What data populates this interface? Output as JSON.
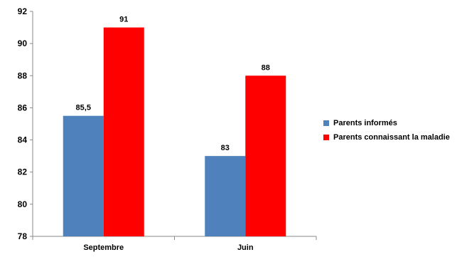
{
  "colors": {
    "series1": "#4f81bd",
    "series2": "#ff0000",
    "axis": "#888888"
  },
  "chart_data": {
    "type": "bar",
    "title": "",
    "xlabel": "",
    "ylabel": "",
    "categories": [
      "Septembre",
      "Juin"
    ],
    "series": [
      {
        "name": "Parents informés",
        "values": [
          85.5,
          83
        ],
        "labels": [
          "85,5",
          "83"
        ]
      },
      {
        "name": "Parents connaissant la maladie",
        "values": [
          91,
          88
        ],
        "labels": [
          "91",
          "88"
        ]
      }
    ],
    "ylim": [
      78,
      92
    ],
    "yticks": [
      78,
      80,
      82,
      84,
      86,
      88,
      90,
      92
    ],
    "grid": false,
    "legend_position": "right"
  }
}
